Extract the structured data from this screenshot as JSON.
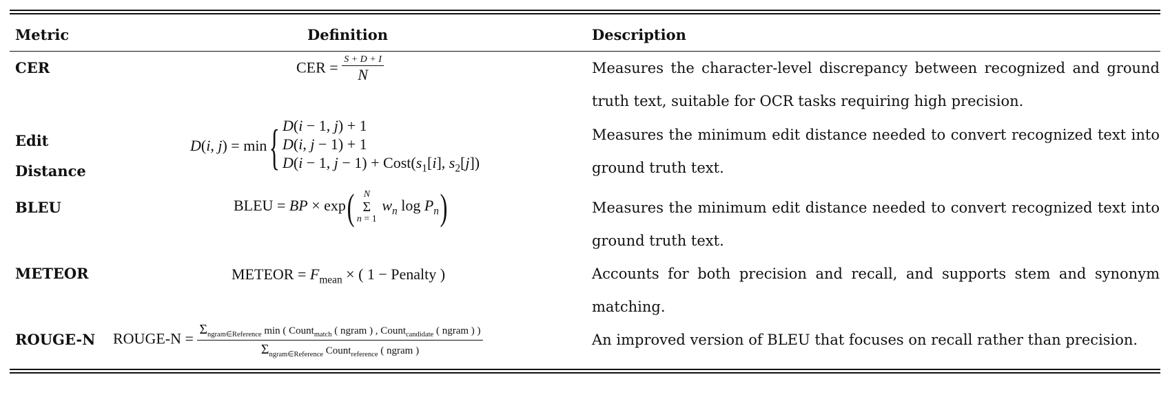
{
  "table": {
    "headers": {
      "metric": "Metric",
      "definition": "Definition",
      "description": "Description"
    },
    "rows": [
      {
        "metric": "CER",
        "definition": "CER = (S + D + I) / N",
        "description": "Measures the character-level discrepancy between recognized and ground truth text, suitable for OCR tasks requiring high precision."
      },
      {
        "metric": "Edit Distance",
        "definition": "D(i, j) = min{ D(i − 1, j) + 1 ; D(i, j − 1) + 1 ; D(i − 1, j − 1) + Cost(s1[i], s2[j]) }",
        "description": "Measures the minimum edit distance needed to convert recognized text into ground truth text."
      },
      {
        "metric": "BLEU",
        "definition": "BLEU = BP × exp( Σ_{n=1}^{N} w_n log P_n )",
        "description": "Measures the minimum edit distance needed to convert recognized text into ground truth text."
      },
      {
        "metric": "METEOR",
        "definition": "METEOR = F_mean × ( 1 − Penalty )",
        "description": "Accounts for both precision and recall, and supports stem and synonym matching."
      },
      {
        "metric": "ROUGE-N",
        "definition": "ROUGE-N = Σ_{ngram∈Reference} min ( Count_match ( ngram ) , Count_candidate ( ngram ) ) / Σ_{ngram∈Reference} Count_reference ( ngram )",
        "description": "An improved version of BLEU that focuses on recall rather than precision."
      }
    ]
  }
}
